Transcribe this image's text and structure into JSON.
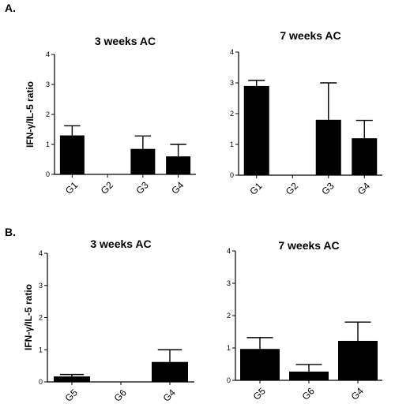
{
  "panel_labels": [
    "A.",
    "B."
  ],
  "chart_data": [
    {
      "type": "bar",
      "title": "3 weeks AC",
      "ylabel": "IFN-γ/IL-5 ratio",
      "xlabel": "",
      "ylim": [
        0,
        4
      ],
      "yticks": [
        "0",
        "1",
        "2",
        "3",
        "4"
      ],
      "categories": [
        "G1",
        "G2",
        "G3",
        "G4"
      ],
      "values": [
        1.3,
        0,
        0.85,
        0.6
      ],
      "errors": [
        0.32,
        0,
        0.43,
        0.4
      ],
      "grid": false,
      "bar_color": "#000000"
    },
    {
      "type": "bar",
      "title": "7 weeks AC",
      "ylabel": "",
      "xlabel": "",
      "ylim": [
        0,
        4
      ],
      "yticks": [
        "0",
        "1",
        "2",
        "3",
        "4"
      ],
      "categories": [
        "G1",
        "G2",
        "G3",
        "G4"
      ],
      "values": [
        2.9,
        0,
        1.8,
        1.2
      ],
      "errors": [
        0.18,
        0,
        1.2,
        0.58
      ],
      "grid": false,
      "bar_color": "#000000"
    },
    {
      "type": "bar",
      "title": "3 weeks AC",
      "ylabel": "IFN-γ/IL-5 ratio",
      "xlabel": "",
      "ylim": [
        0,
        4
      ],
      "yticks": [
        "0",
        "1",
        "2",
        "3",
        "4"
      ],
      "categories": [
        "G5",
        "G6",
        "G4"
      ],
      "values": [
        0.17,
        0,
        0.62
      ],
      "errors": [
        0.06,
        0,
        0.38
      ],
      "grid": false,
      "bar_color": "#000000"
    },
    {
      "type": "bar",
      "title": "7 weeks AC",
      "ylabel": "",
      "xlabel": "",
      "ylim": [
        0,
        4
      ],
      "yticks": [
        "0",
        "1",
        "2",
        "3",
        "4"
      ],
      "categories": [
        "G5",
        "G6",
        "G4"
      ],
      "values": [
        0.97,
        0.27,
        1.22
      ],
      "errors": [
        0.35,
        0.22,
        0.58
      ],
      "grid": false,
      "bar_color": "#000000"
    }
  ]
}
